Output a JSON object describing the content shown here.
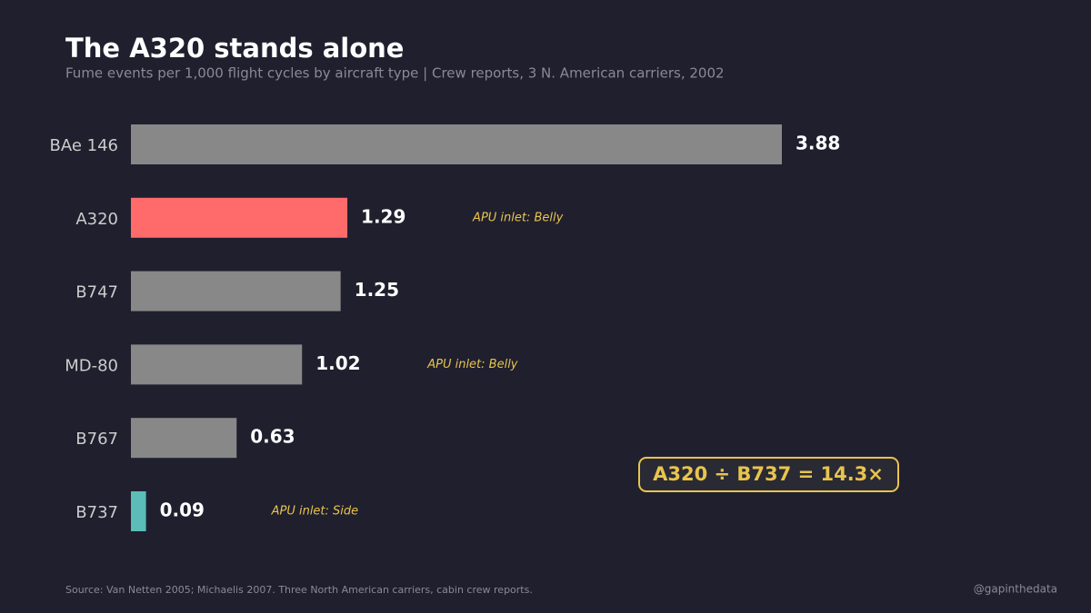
{
  "chart_data": {
    "type": "bar",
    "orientation": "horizontal",
    "title": "The A320 stands alone",
    "subtitle": "Fume events per 1,000 flight cycles by aircraft type  |  Crew reports, 3 N. American carriers, 2002",
    "categories": [
      "BAe 146",
      "A320",
      "B747",
      "MD-80",
      "B767",
      "B737"
    ],
    "values": [
      3.88,
      1.29,
      1.25,
      1.02,
      0.63,
      0.09
    ],
    "colors": [
      "#888888",
      "#ff6b6b",
      "#888888",
      "#888888",
      "#888888",
      "#5bbcb8"
    ],
    "bar_notes": [
      null,
      "APU inlet: Belly",
      null,
      "APU inlet: Belly",
      null,
      "APU inlet: Side"
    ],
    "callout": "A320 ÷ B737 = 14.3×",
    "source": "Source: Van Netten 2005; Michaelis 2007. Three North American carriers, cabin crew reports.",
    "credit": "@gapinthedata"
  }
}
